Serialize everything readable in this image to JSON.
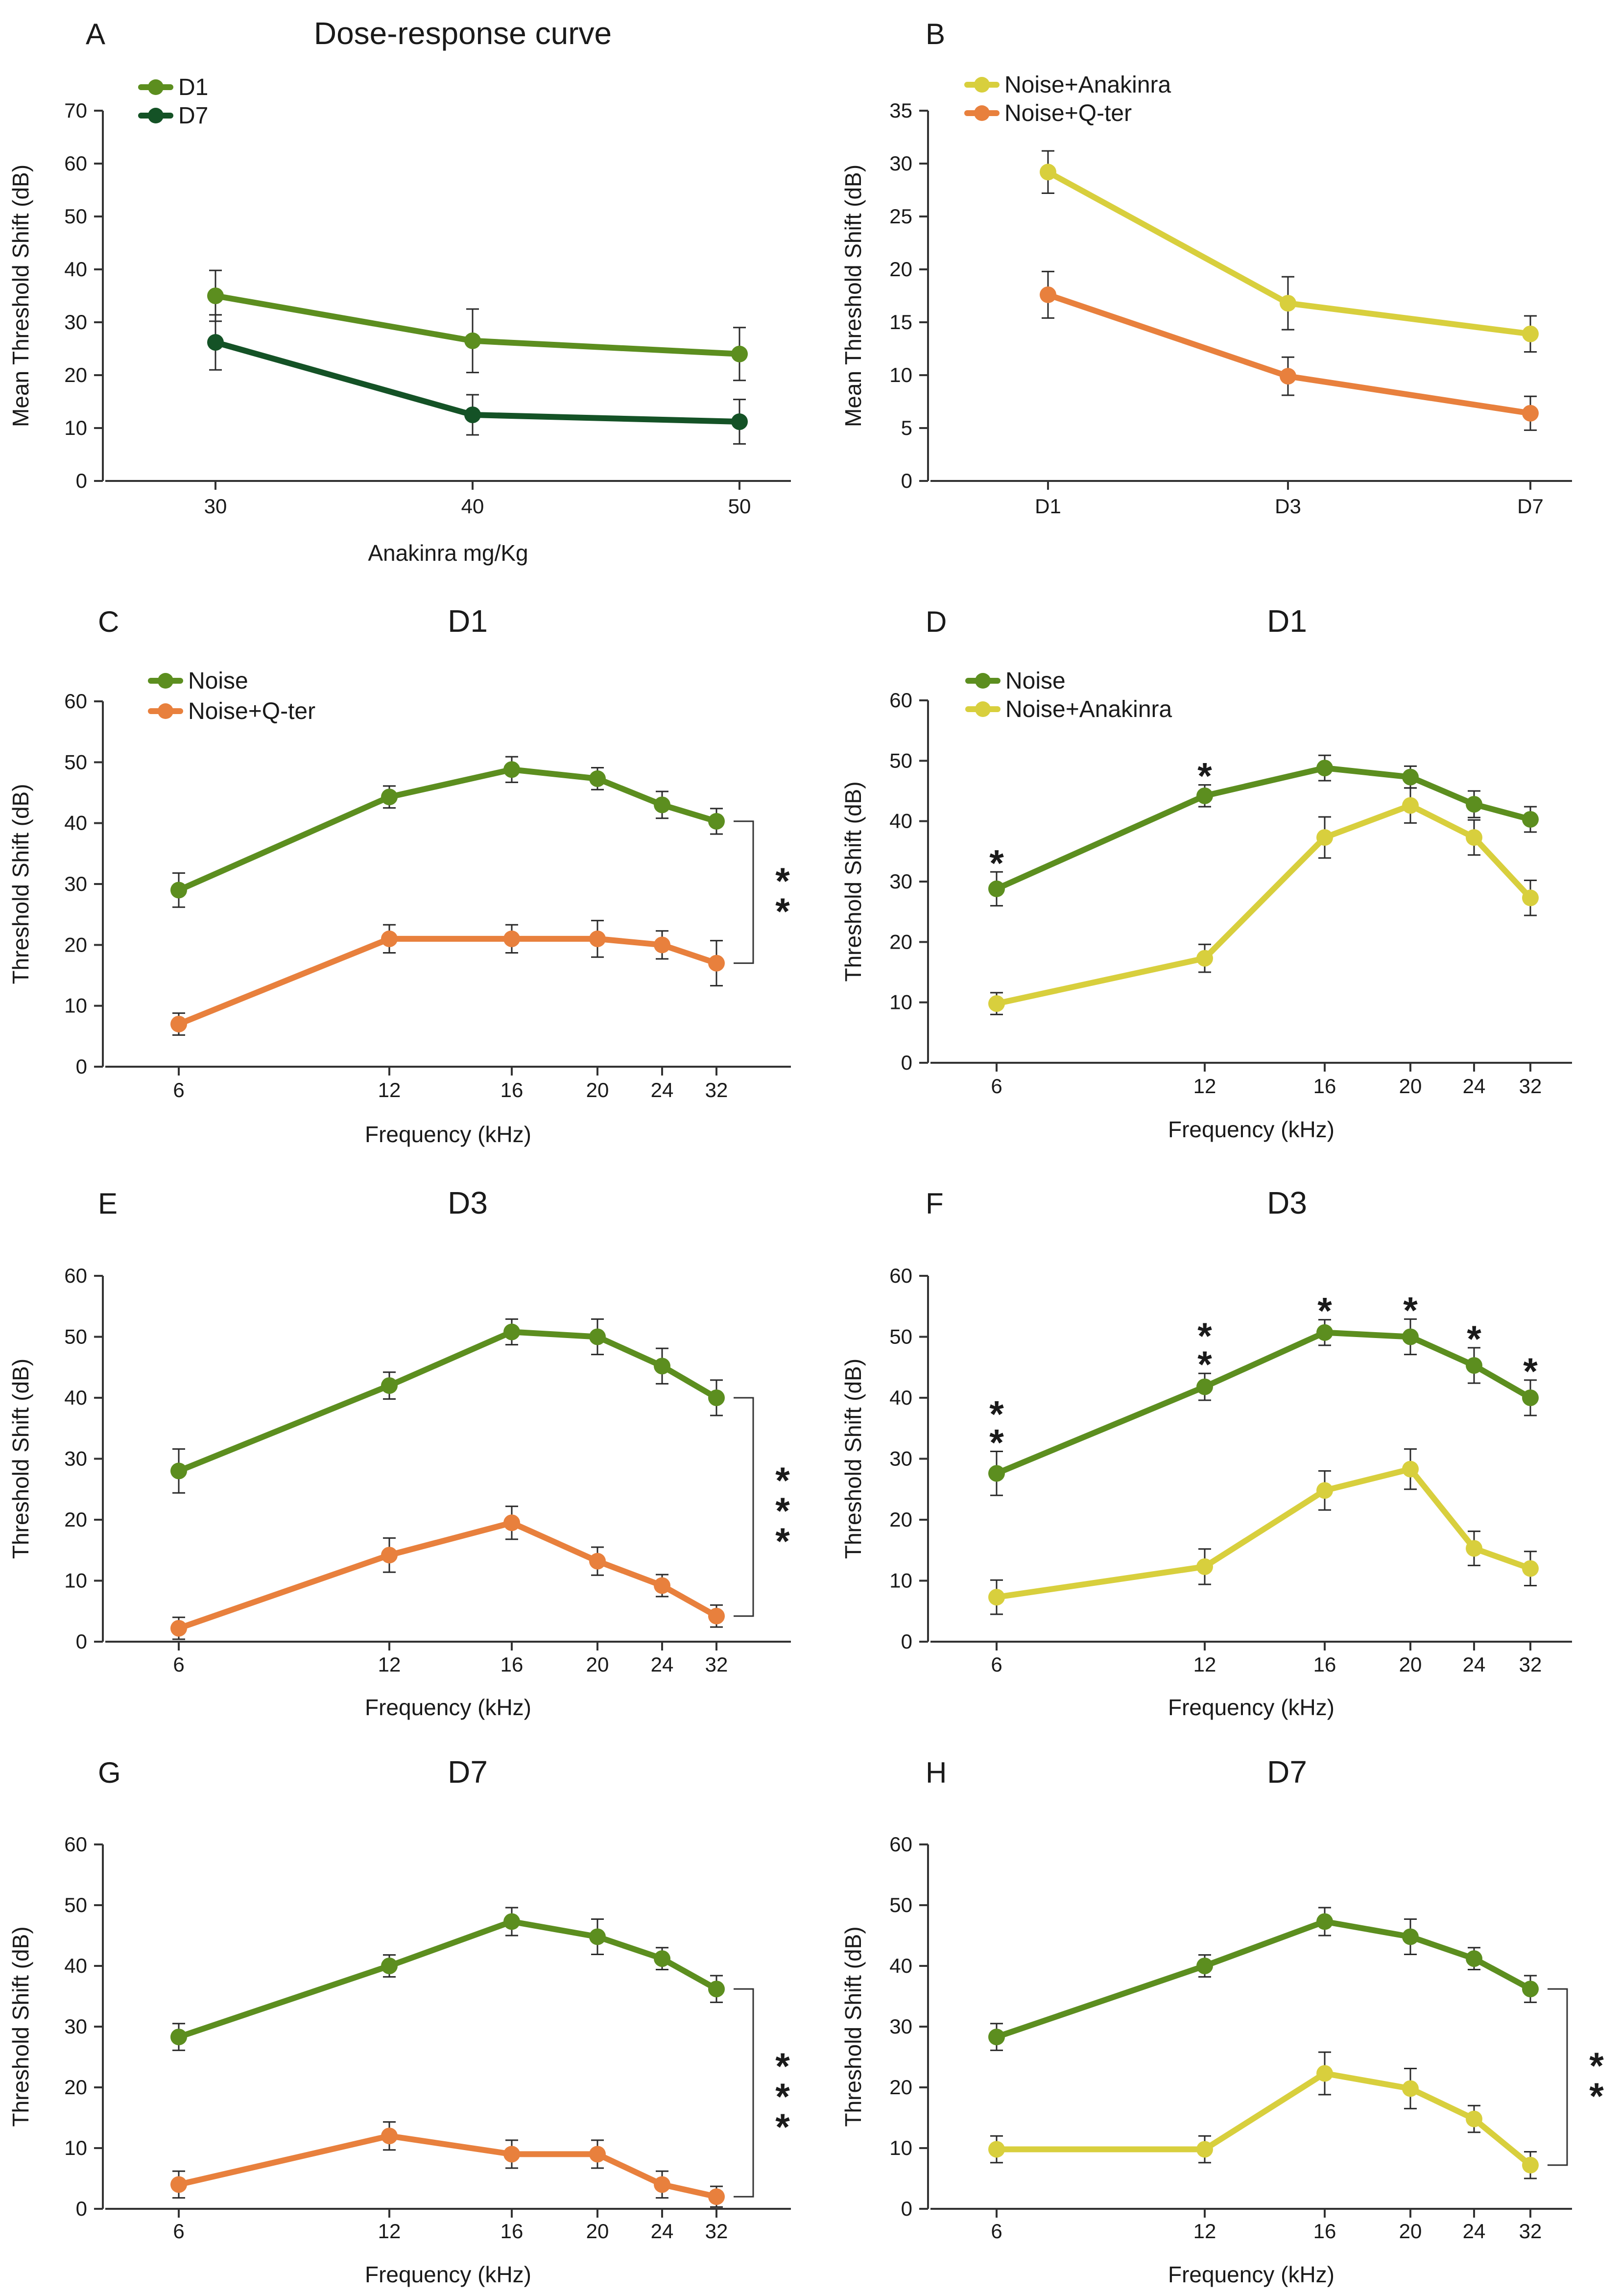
{
  "colors": {
    "noise_green": "#5c8e1f",
    "d7_dark_green": "#145226",
    "qter_orange": "#e8803d",
    "anakinra_yellow": "#d8cf3d",
    "axis": "#333333",
    "text": "#1a1a1a"
  },
  "chart_data": [
    {
      "panel": "A",
      "type": "line",
      "title": "Dose-response curve",
      "xlabel": "Anakinra mg/Kg",
      "ylabel": "Mean Threshold Shift (dB)",
      "ylim": [
        0,
        70
      ],
      "yticks": [
        0,
        10,
        20,
        30,
        40,
        50,
        60,
        70
      ],
      "xticks": [
        "30",
        "40",
        "50"
      ],
      "legend_position": "top-left",
      "significance": [],
      "series": [
        {
          "name": "D1",
          "color": "#5c8e1f",
          "x": [
            30,
            40,
            50
          ],
          "values": [
            35,
            26.5,
            24
          ],
          "errors": [
            4.8,
            6,
            5
          ]
        },
        {
          "name": "D7",
          "color": "#145226",
          "x": [
            30,
            40,
            50
          ],
          "values": [
            26.2,
            12.5,
            11.2
          ],
          "errors": [
            5.2,
            3.8,
            4.2
          ]
        }
      ]
    },
    {
      "panel": "B",
      "type": "line",
      "title": "",
      "xlabel": "",
      "ylabel": "Mean Threshold Shift (dB)",
      "ylim": [
        0,
        35
      ],
      "yticks": [
        0,
        5,
        10,
        15,
        20,
        25,
        30,
        35
      ],
      "xticks": [
        "D1",
        "D3",
        "D7"
      ],
      "legend_position": "top-left",
      "significance": [],
      "series": [
        {
          "name": "Noise+Anakinra",
          "color": "#d8cf3d",
          "x": [
            "D1",
            "D3",
            "D7"
          ],
          "values": [
            29.2,
            16.8,
            13.9
          ],
          "errors": [
            2,
            2.5,
            1.7
          ]
        },
        {
          "name": "Noise+Q-ter",
          "color": "#e8803d",
          "x": [
            "D1",
            "D3",
            "D7"
          ],
          "values": [
            17.6,
            9.9,
            6.4
          ],
          "errors": [
            2.2,
            1.8,
            1.6
          ]
        }
      ]
    },
    {
      "panel": "C",
      "type": "line",
      "title": "D1",
      "xlabel": "Frequency (kHz)",
      "ylabel": "Threshold Shift (dB)",
      "ylim": [
        0,
        60
      ],
      "yticks": [
        0,
        10,
        20,
        30,
        40,
        50,
        60
      ],
      "xticks": [
        "6",
        "12",
        "16",
        "20",
        "24",
        "32"
      ],
      "legend_position": "top-left",
      "significance": [
        {
          "type": "bracket",
          "label": "**"
        }
      ],
      "series": [
        {
          "name": "Noise",
          "color": "#5c8e1f",
          "x": [
            6,
            12,
            16,
            20,
            24,
            32
          ],
          "values": [
            29,
            44.3,
            48.8,
            47.3,
            43,
            40.3
          ],
          "errors": [
            2.8,
            1.8,
            2.1,
            1.8,
            2.2,
            2.1
          ]
        },
        {
          "name": "Noise+Q-ter",
          "color": "#e8803d",
          "x": [
            6,
            12,
            16,
            20,
            24,
            32
          ],
          "values": [
            7,
            21,
            21,
            21,
            20,
            17
          ],
          "errors": [
            1.8,
            2.3,
            2.3,
            3,
            2.3,
            3.7
          ]
        }
      ]
    },
    {
      "panel": "D",
      "type": "line",
      "title": "D1",
      "xlabel": "Frequency (kHz)",
      "ylabel": "Threshold Shift (dB)",
      "ylim": [
        0,
        60
      ],
      "yticks": [
        0,
        10,
        20,
        30,
        40,
        50,
        60
      ],
      "xticks": [
        "6",
        "12",
        "16",
        "20",
        "24",
        "32"
      ],
      "legend_position": "top-left",
      "significance": [
        {
          "type": "point",
          "x": 6,
          "label": "*"
        },
        {
          "type": "point",
          "x": 12,
          "label": "*"
        }
      ],
      "series": [
        {
          "name": "Noise",
          "color": "#5c8e1f",
          "x": [
            6,
            12,
            16,
            20,
            24,
            32
          ],
          "values": [
            28.8,
            44.2,
            48.8,
            47.3,
            42.8,
            40.3
          ],
          "errors": [
            2.8,
            1.8,
            2.1,
            1.8,
            2.2,
            2.1
          ]
        },
        {
          "name": "Noise+Anakinra",
          "color": "#d8cf3d",
          "x": [
            6,
            12,
            16,
            20,
            24,
            32
          ],
          "values": [
            9.8,
            17.3,
            37.3,
            42.6,
            37.3,
            27.3
          ],
          "errors": [
            1.8,
            2.3,
            3.4,
            2.9,
            2.9,
            2.9
          ]
        }
      ]
    },
    {
      "panel": "E",
      "type": "line",
      "title": "D3",
      "xlabel": "Frequency (kHz)",
      "ylabel": "Threshold Shift (dB)",
      "ylim": [
        0,
        60
      ],
      "yticks": [
        0,
        10,
        20,
        30,
        40,
        50,
        60
      ],
      "xticks": [
        "6",
        "12",
        "16",
        "20",
        "24",
        "32"
      ],
      "legend_position": "none",
      "significance": [
        {
          "type": "bracket",
          "label": "***"
        }
      ],
      "series": [
        {
          "name": "Noise",
          "color": "#5c8e1f",
          "x": [
            6,
            12,
            16,
            20,
            24,
            32
          ],
          "values": [
            28,
            42,
            50.8,
            50,
            45.2,
            40
          ],
          "errors": [
            3.6,
            2.2,
            2.1,
            2.9,
            2.9,
            2.9
          ]
        },
        {
          "name": "Noise+Q-ter",
          "color": "#e8803d",
          "x": [
            6,
            12,
            16,
            20,
            24,
            32
          ],
          "values": [
            2.2,
            14.2,
            19.5,
            13.2,
            9.2,
            4.2
          ],
          "errors": [
            1.8,
            2.8,
            2.7,
            2.3,
            1.8,
            1.8
          ]
        }
      ]
    },
    {
      "panel": "F",
      "type": "line",
      "title": "D3",
      "xlabel": "Frequency (kHz)",
      "ylabel": "Threshold Shift (dB)",
      "ylim": [
        0,
        60
      ],
      "yticks": [
        0,
        10,
        20,
        30,
        40,
        50,
        60
      ],
      "xticks": [
        "6",
        "12",
        "16",
        "20",
        "24",
        "32"
      ],
      "legend_position": "none",
      "significance": [
        {
          "type": "point",
          "x": 6,
          "label": "**"
        },
        {
          "type": "point",
          "x": 12,
          "label": "**"
        },
        {
          "type": "point",
          "x": 16,
          "label": "*"
        },
        {
          "type": "point",
          "x": 20,
          "label": "*"
        },
        {
          "type": "point",
          "x": 24,
          "label": "*"
        },
        {
          "type": "point",
          "x": 32,
          "label": "*"
        }
      ],
      "series": [
        {
          "name": "Noise",
          "color": "#5c8e1f",
          "x": [
            6,
            12,
            16,
            20,
            24,
            32
          ],
          "values": [
            27.6,
            41.8,
            50.7,
            50,
            45.3,
            40
          ],
          "errors": [
            3.6,
            2.2,
            2.1,
            2.9,
            2.9,
            2.9
          ]
        },
        {
          "name": "Noise+Anakinra",
          "color": "#d8cf3d",
          "x": [
            6,
            12,
            16,
            20,
            24,
            32
          ],
          "values": [
            7.3,
            12.3,
            24.8,
            28.3,
            15.3,
            12
          ],
          "errors": [
            2.8,
            2.9,
            3.2,
            3.3,
            2.8,
            2.8
          ]
        }
      ]
    },
    {
      "panel": "G",
      "type": "line",
      "title": "D7",
      "xlabel": "Frequency (kHz)",
      "ylabel": "Threshold Shift (dB)",
      "ylim": [
        0,
        60
      ],
      "yticks": [
        0,
        10,
        20,
        30,
        40,
        50,
        60
      ],
      "xticks": [
        "6",
        "12",
        "16",
        "20",
        "24",
        "32"
      ],
      "legend_position": "none",
      "significance": [
        {
          "type": "bracket",
          "label": "***"
        }
      ],
      "series": [
        {
          "name": "Noise",
          "color": "#5c8e1f",
          "x": [
            6,
            12,
            16,
            20,
            24,
            32
          ],
          "values": [
            28.3,
            40,
            47.3,
            44.8,
            41.2,
            36.2
          ],
          "errors": [
            2.2,
            1.8,
            2.3,
            2.9,
            1.8,
            2.2
          ]
        },
        {
          "name": "Noise+Q-ter",
          "color": "#e8803d",
          "x": [
            6,
            12,
            16,
            20,
            24,
            32
          ],
          "values": [
            4,
            12,
            9,
            9,
            4,
            2
          ],
          "errors": [
            2.2,
            2.3,
            2.3,
            2.3,
            2.2,
            1.7
          ]
        }
      ]
    },
    {
      "panel": "H",
      "type": "line",
      "title": "D7",
      "xlabel": "Frequency (kHz)",
      "ylabel": "Threshold Shift (dB)",
      "ylim": [
        0,
        60
      ],
      "yticks": [
        0,
        10,
        20,
        30,
        40,
        50,
        60
      ],
      "xticks": [
        "6",
        "12",
        "16",
        "20",
        "24",
        "32"
      ],
      "legend_position": "none",
      "significance": [
        {
          "type": "bracket",
          "label": "**"
        }
      ],
      "series": [
        {
          "name": "Noise",
          "color": "#5c8e1f",
          "x": [
            6,
            12,
            16,
            20,
            24,
            32
          ],
          "values": [
            28.3,
            40,
            47.3,
            44.8,
            41.2,
            36.2
          ],
          "errors": [
            2.2,
            1.8,
            2.3,
            2.9,
            1.8,
            2.2
          ]
        },
        {
          "name": "Noise+Anakinra",
          "color": "#d8cf3d",
          "x": [
            6,
            12,
            16,
            20,
            24,
            32
          ],
          "values": [
            9.8,
            9.8,
            22.3,
            19.8,
            14.8,
            7.2
          ],
          "errors": [
            2.2,
            2.2,
            3.5,
            3.3,
            2.2,
            2.2
          ]
        }
      ]
    }
  ]
}
